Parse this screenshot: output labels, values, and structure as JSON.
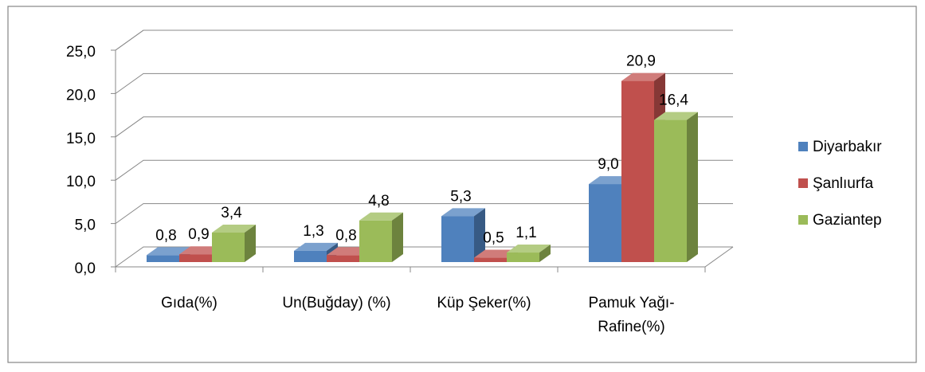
{
  "chart_data": {
    "type": "bar3d",
    "categories": [
      "Gıda(%)",
      "Un(Buğday) (%)",
      "Küp Şeker(%)",
      "Pamuk Yağı-Rafine(%)"
    ],
    "series": [
      {
        "name": "Diyarbakır",
        "color": "#4f81bd",
        "values": [
          0.8,
          1.3,
          5.3,
          9.0
        ],
        "value_labels": [
          "0,8",
          "1,3",
          "5,3",
          "9,0"
        ]
      },
      {
        "name": "Şanlıurfa",
        "color": "#c0504d",
        "values": [
          0.9,
          0.8,
          0.5,
          20.9
        ],
        "value_labels": [
          "0,9",
          "0,8",
          "0,5",
          "20,9"
        ]
      },
      {
        "name": "Gaziantep",
        "color": "#9bbb59",
        "values": [
          3.4,
          4.8,
          1.1,
          16.4
        ],
        "value_labels": [
          "3,4",
          "4,8",
          "1,1",
          "16,4"
        ]
      }
    ],
    "ylim": [
      0,
      25
    ],
    "yticks": [
      {
        "value": 0,
        "label": "0,0"
      },
      {
        "value": 5,
        "label": "5,0"
      },
      {
        "value": 10,
        "label": "10,0"
      },
      {
        "value": 15,
        "label": "15,0"
      },
      {
        "value": 20,
        "label": "20,0"
      },
      {
        "value": 25,
        "label": "25,0"
      }
    ],
    "grid": true,
    "legend": "right"
  }
}
